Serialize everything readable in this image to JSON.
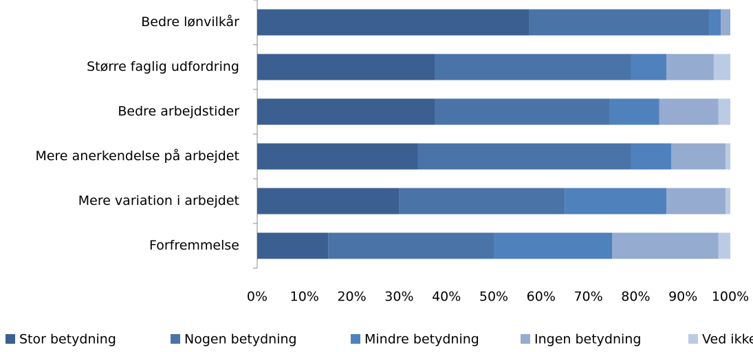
{
  "chart_data": {
    "type": "stacked-bar-horizontal",
    "categories": [
      "Bedre lønvilkår",
      "Større faglig udfordring",
      "Bedre arbejdstider",
      "Mere anerkendelse på arbejdet",
      "Mere variation i arbejdet",
      "Forfremmelse"
    ],
    "series": [
      {
        "name": "Stor betydning",
        "color": "#3b5f90",
        "values": [
          57.5,
          37.5,
          37.5,
          34,
          30,
          15
        ]
      },
      {
        "name": "Nogen betydning",
        "color": "#4a74a8",
        "values": [
          38,
          41.5,
          37,
          45,
          35,
          35
        ]
      },
      {
        "name": "Mindre betydning",
        "color": "#4f81bd",
        "values": [
          2.5,
          7.5,
          10.5,
          8.5,
          21.5,
          25
        ]
      },
      {
        "name": "Ingen betydning",
        "color": "#95abd0",
        "values": [
          2,
          10,
          12.5,
          11.5,
          12.5,
          22.5
        ]
      },
      {
        "name": "Ved ikke",
        "color": "#bccbe4",
        "values": [
          0,
          3.5,
          2.5,
          1,
          1,
          2.5
        ]
      }
    ],
    "xlim": [
      0,
      100
    ],
    "xticks": [
      {
        "value": 0,
        "label": "0%"
      },
      {
        "value": 10,
        "label": "10%"
      },
      {
        "value": 20,
        "label": "20%"
      },
      {
        "value": 30,
        "label": "30%"
      },
      {
        "value": 40,
        "label": "40%"
      },
      {
        "value": 50,
        "label": "50%"
      },
      {
        "value": 60,
        "label": "60%"
      },
      {
        "value": 70,
        "label": "70%"
      },
      {
        "value": 80,
        "label": "80%"
      },
      {
        "value": 90,
        "label": "90%"
      },
      {
        "value": 100,
        "label": "100%"
      }
    ],
    "legend": "bottom"
  }
}
